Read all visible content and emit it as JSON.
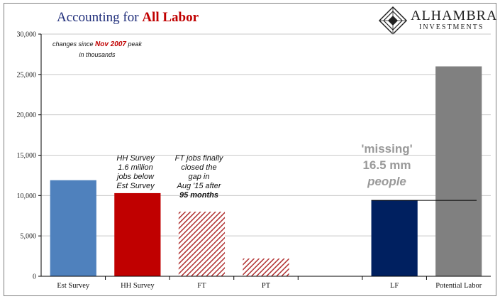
{
  "title": {
    "prefix": "Accounting for",
    "highlight": "All Labor"
  },
  "logo": {
    "name": "ALHAMBRA",
    "sub": "INVESTMENTS"
  },
  "note": {
    "line1_prefix": "changes since",
    "line1_highlight": "Nov 2007",
    "line1_suffix": "peak",
    "line2": "in thousands"
  },
  "annotations": {
    "hh": [
      "HH Survey",
      "1.6 million",
      "jobs below",
      "Est Survey"
    ],
    "ft": [
      "FT jobs finally",
      "closed the",
      "gap in",
      "Aug '15 after"
    ],
    "ft_bold": "95 months",
    "missing": [
      "'missing'",
      "16.5 mm",
      "people"
    ]
  },
  "colors": {
    "est": "#4f81bd",
    "hh": "#c00000",
    "hatch": "#b03030",
    "lf": "#002060",
    "potential": "#808080",
    "grid": "#c8c8c8",
    "axis": "#000000",
    "title": "#1f2d7a",
    "highlight": "#c00000",
    "missing_text": "#999999"
  },
  "chart_data": {
    "type": "bar",
    "categories": [
      "Est Survey",
      "HH Survey",
      "FT",
      "PT",
      "",
      "LF",
      "Potential Labor"
    ],
    "values": [
      11900,
      10300,
      8000,
      2200,
      null,
      9400,
      26000
    ],
    "fills": [
      "solid",
      "solid",
      "hatched",
      "hatched",
      "none",
      "solid",
      "solid"
    ],
    "ylim": [
      0,
      30000
    ],
    "yticks": [
      "0",
      "5,000",
      "10,000",
      "15,000",
      "20,000",
      "25,000",
      "30,000"
    ],
    "ytick_values": [
      0,
      5000,
      10000,
      15000,
      20000,
      25000,
      30000
    ],
    "reference_line": 9400,
    "grid": true,
    "title": "Accounting for All Labor"
  }
}
